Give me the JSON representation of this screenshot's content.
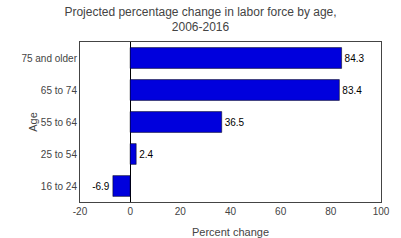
{
  "chart_data": {
    "type": "bar",
    "orientation": "horizontal",
    "title": "Projected percentage change in labor force by age,\n2006-2016",
    "categories": [
      "16 to 24",
      "25 to 54",
      "55 to 64",
      "65 to 74",
      "75 and older"
    ],
    "values": [
      -6.9,
      2.4,
      36.5,
      83.4,
      84.3
    ],
    "color": "#0000DD",
    "xlabel": "Percent change",
    "ylabel": "Age",
    "xlim": [
      -20,
      100
    ],
    "xticks": [
      -20,
      0,
      20,
      40,
      60,
      80,
      100
    ],
    "data_labels": true,
    "grid": false
  }
}
